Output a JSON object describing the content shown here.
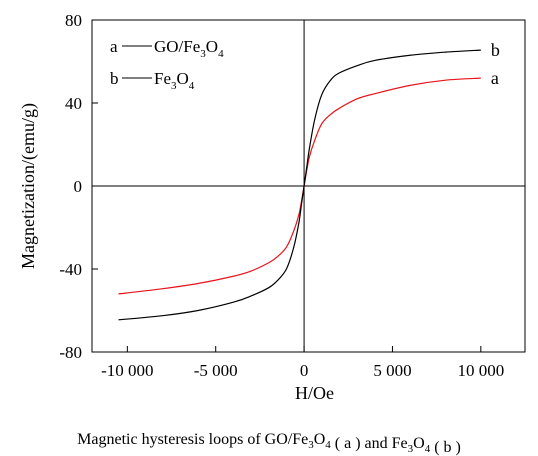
{
  "chart_data": {
    "type": "line",
    "caption": "Magnetic hysteresis loops of GO/Fe3O4 ( a ) and Fe3O4 ( b )",
    "xlabel": "H/Oe",
    "ylabel": "Magnetization/(emu/g)",
    "xlim": [
      -12000,
      12500
    ],
    "ylim": [
      -80,
      80
    ],
    "x_ticks": [
      -10000,
      -5000,
      0,
      5000,
      10000
    ],
    "x_tick_labels": [
      "-10 000",
      "-5 000",
      "0",
      "5 000",
      "10 000"
    ],
    "y_ticks": [
      -80,
      -40,
      0,
      40,
      80
    ],
    "y_tick_labels": [
      "-80",
      "-40",
      "0",
      "40",
      "80"
    ],
    "series": [
      {
        "name": "GO/Fe3O4",
        "label": "a",
        "color": "#e8141b",
        "x": [
          -10500,
          -8000,
          -6000,
          -4000,
          -3000,
          -2000,
          -1500,
          -1000,
          -600,
          -300,
          -150,
          0,
          150,
          300,
          600,
          1000,
          1500,
          2000,
          3000,
          4000,
          6000,
          8000,
          10000
        ],
        "y": [
          -52,
          -49.5,
          -47,
          -43.5,
          -41,
          -37,
          -34,
          -29.5,
          -22,
          -14,
          -7.5,
          0,
          7.5,
          14,
          22,
          30,
          34.5,
          37.5,
          42,
          44.5,
          48.5,
          51,
          52
        ]
      },
      {
        "name": "Fe3O4",
        "label": "b",
        "color": "#000000",
        "x": [
          -10500,
          -8000,
          -6000,
          -4000,
          -3000,
          -2000,
          -1500,
          -1000,
          -600,
          -300,
          -150,
          0,
          150,
          300,
          600,
          1000,
          1500,
          2000,
          3000,
          4000,
          6000,
          8000,
          10000
        ],
        "y": [
          -64.5,
          -62.5,
          -60,
          -56,
          -53,
          -49,
          -45.5,
          -40,
          -30,
          -18,
          -9,
          0,
          9,
          18,
          32,
          44,
          51,
          54.5,
          58,
          60.5,
          63,
          64.5,
          65.5
        ]
      }
    ],
    "legend": {
      "placement": "top-left",
      "entries": [
        {
          "key": "a",
          "text": "GO/Fe",
          "sub1": "3",
          "mid": "O",
          "sub2": "4"
        },
        {
          "key": "b",
          "text": "Fe",
          "sub1": "3",
          "mid": "O",
          "sub2": "4"
        }
      ]
    },
    "grid": false
  }
}
